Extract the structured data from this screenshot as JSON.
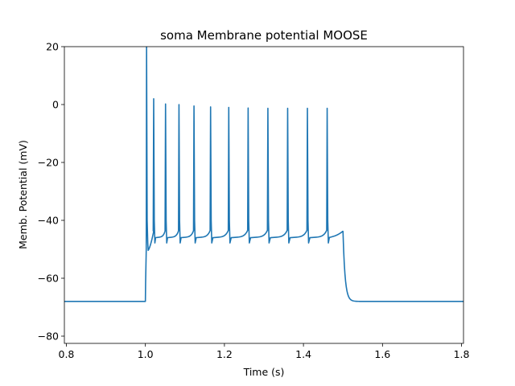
{
  "chart_data": {
    "type": "line",
    "title": "soma Membrane potential MOOSE",
    "xlabel": "Time (s)",
    "ylabel": "Memb. Potential (mV)",
    "xlim": [
      0.795,
      1.805
    ],
    "ylim": [
      -82.5,
      20
    ],
    "xticks": [
      0.8,
      1.0,
      1.2,
      1.4,
      1.6,
      1.8
    ],
    "xtick_labels": [
      "0.8",
      "1.0",
      "1.2",
      "1.4",
      "1.6",
      "1.8"
    ],
    "yticks": [
      -80,
      -60,
      -40,
      -20,
      0,
      20
    ],
    "ytick_labels": [
      "−80",
      "−60",
      "−40",
      "−20",
      "0",
      "20"
    ],
    "grid": false,
    "legend": "none",
    "series": [
      {
        "color": "#1f77b4",
        "resting_potential": -68,
        "stim_start": 1.0,
        "stim_end": 1.5,
        "spikes": [
          {
            "t": 1.003,
            "peak": 20
          },
          {
            "t": 1.021,
            "peak": 2
          },
          {
            "t": 1.051,
            "peak": 0.2
          },
          {
            "t": 1.085,
            "peak": 0
          },
          {
            "t": 1.123,
            "peak": -0.5
          },
          {
            "t": 1.165,
            "peak": -0.8
          },
          {
            "t": 1.211,
            "peak": -1
          },
          {
            "t": 1.26,
            "peak": -1.2
          },
          {
            "t": 1.31,
            "peak": -1.3
          },
          {
            "t": 1.36,
            "peak": -1.3
          },
          {
            "t": 1.41,
            "peak": -1.3
          },
          {
            "t": 1.46,
            "peak": -1.3
          }
        ],
        "trough": -47.8,
        "plateau_end": -43.8
      }
    ]
  }
}
